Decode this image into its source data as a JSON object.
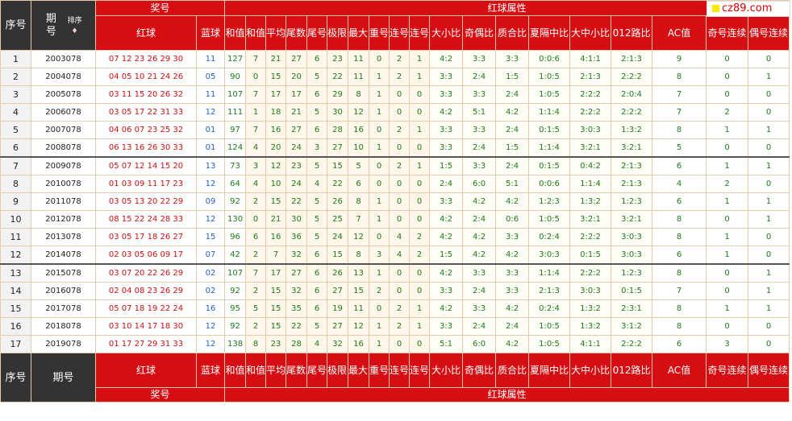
{
  "header": {
    "seq": "序号",
    "issue": "期号",
    "sort": "排序",
    "sort_icon": "sort-arrows-icon",
    "prize": "奖号",
    "red": "红球",
    "blue": "蓝球",
    "attr": "红球属性",
    "cols": [
      "和值",
      "和值尾数",
      "平均值",
      "尾数和值",
      "尾号组数",
      "极限间距",
      "最大间距",
      "重号个数",
      "连号个数",
      "连号组数",
      "大小比",
      "奇偶比",
      "质合比",
      "夏隔中比",
      "大中小比",
      "012路比",
      "AC值",
      "奇号连续",
      "偶号连续"
    ]
  },
  "footer": {
    "seq": "序号",
    "issue": "期号",
    "red": "红球",
    "blue": "蓝球",
    "cols": [
      "和值",
      "和值尾数",
      "平均值",
      "尾数和值",
      "尾号组数",
      "极限间距",
      "最大间距",
      "重号个数",
      "连号个数",
      "连号组数",
      "大小比",
      "奇偶比",
      "质合比",
      "夏隔中比",
      "大中小比",
      "012路比",
      "AC值",
      "奇号连续",
      "偶号连续"
    ],
    "prize": "奖号",
    "attr": "红球属性"
  },
  "logo": {
    "text": "cz89.com"
  },
  "colors": {
    "header_red": "#d60e14",
    "red_ball": "#d01010",
    "blue_ball": "#1f5fd0",
    "green_value": "#1a7a1a"
  },
  "rows": [
    {
      "seq": "1",
      "issue": "2003078",
      "red": "07 12 23 26 29 30",
      "blue": "11",
      "vals": [
        "127",
        "7",
        "21",
        "27",
        "6",
        "23",
        "11",
        "0",
        "2",
        "1",
        "4:2",
        "3:3",
        "3:3",
        "0:0:6",
        "4:1:1",
        "2:1:3",
        "9",
        "0",
        "0"
      ]
    },
    {
      "seq": "2",
      "issue": "2004078",
      "red": "04 05 10 21 24 26",
      "blue": "05",
      "vals": [
        "90",
        "0",
        "15",
        "20",
        "5",
        "22",
        "11",
        "1",
        "2",
        "1",
        "3:3",
        "2:4",
        "1:5",
        "1:0:5",
        "2:1:3",
        "2:2:2",
        "8",
        "0",
        "1"
      ]
    },
    {
      "seq": "3",
      "issue": "2005078",
      "red": "03 11 15 20 26 32",
      "blue": "11",
      "vals": [
        "107",
        "7",
        "17",
        "17",
        "6",
        "29",
        "8",
        "1",
        "0",
        "0",
        "3:3",
        "3:3",
        "2:4",
        "1:0:5",
        "2:2:2",
        "2:0:4",
        "7",
        "0",
        "0"
      ]
    },
    {
      "seq": "4",
      "issue": "2006078",
      "red": "03 05 17 22 31 33",
      "blue": "12",
      "vals": [
        "111",
        "1",
        "18",
        "21",
        "5",
        "30",
        "12",
        "1",
        "0",
        "0",
        "4:2",
        "5:1",
        "4:2",
        "1:1:4",
        "2:2:2",
        "2:2:2",
        "7",
        "2",
        "0"
      ]
    },
    {
      "seq": "5",
      "issue": "2007078",
      "red": "04 06 07 23 25 32",
      "blue": "01",
      "vals": [
        "97",
        "7",
        "16",
        "27",
        "6",
        "28",
        "16",
        "0",
        "2",
        "1",
        "3:3",
        "3:3",
        "2:4",
        "0:1:5",
        "3:0:3",
        "1:3:2",
        "8",
        "1",
        "1"
      ]
    },
    {
      "seq": "6",
      "issue": "2008078",
      "red": "06 13 16 26 30 33",
      "blue": "01",
      "vals": [
        "124",
        "4",
        "20",
        "24",
        "3",
        "27",
        "10",
        "1",
        "0",
        "0",
        "3:3",
        "2:4",
        "1:5",
        "1:1:4",
        "3:2:1",
        "3:2:1",
        "5",
        "0",
        "0"
      ]
    },
    {
      "seq": "7",
      "issue": "2009078",
      "red": "05 07 12 14 15 20",
      "blue": "13",
      "vals": [
        "73",
        "3",
        "12",
        "23",
        "5",
        "15",
        "5",
        "0",
        "2",
        "1",
        "1:5",
        "3:3",
        "2:4",
        "0:1:5",
        "0:4:2",
        "2:1:3",
        "6",
        "1",
        "1"
      ]
    },
    {
      "seq": "8",
      "issue": "2010078",
      "red": "01 03 09 11 17 23",
      "blue": "12",
      "vals": [
        "64",
        "4",
        "10",
        "24",
        "4",
        "22",
        "6",
        "0",
        "0",
        "0",
        "2:4",
        "6:0",
        "5:1",
        "0:0:6",
        "1:1:4",
        "2:1:3",
        "4",
        "2",
        "0"
      ]
    },
    {
      "seq": "9",
      "issue": "2011078",
      "red": "03 05 13 20 22 29",
      "blue": "09",
      "vals": [
        "92",
        "2",
        "15",
        "22",
        "5",
        "26",
        "8",
        "1",
        "0",
        "0",
        "3:3",
        "4:2",
        "4:2",
        "1:2:3",
        "1:3:2",
        "1:2:3",
        "6",
        "1",
        "1"
      ]
    },
    {
      "seq": "10",
      "issue": "2012078",
      "red": "08 15 22 24 28 33",
      "blue": "12",
      "vals": [
        "130",
        "0",
        "21",
        "30",
        "5",
        "25",
        "7",
        "1",
        "0",
        "0",
        "4:2",
        "2:4",
        "0:6",
        "1:0:5",
        "3:2:1",
        "3:2:1",
        "8",
        "0",
        "1"
      ]
    },
    {
      "seq": "11",
      "issue": "2013078",
      "red": "03 05 17 18 26 27",
      "blue": "15",
      "vals": [
        "96",
        "6",
        "16",
        "36",
        "5",
        "24",
        "12",
        "0",
        "4",
        "2",
        "4:2",
        "4:2",
        "3:3",
        "0:2:4",
        "2:2:2",
        "3:0:3",
        "8",
        "1",
        "0"
      ]
    },
    {
      "seq": "12",
      "issue": "2014078",
      "red": "02 03 05 06 09 17",
      "blue": "07",
      "vals": [
        "42",
        "2",
        "7",
        "32",
        "6",
        "15",
        "8",
        "3",
        "4",
        "2",
        "1:5",
        "4:2",
        "4:2",
        "3:0:3",
        "0:1:5",
        "3:0:3",
        "6",
        "1",
        "0"
      ]
    },
    {
      "seq": "13",
      "issue": "2015078",
      "red": "03 07 20 22 26 29",
      "blue": "02",
      "vals": [
        "107",
        "7",
        "17",
        "27",
        "6",
        "26",
        "13",
        "1",
        "0",
        "0",
        "4:2",
        "3:3",
        "3:3",
        "1:1:4",
        "2:2:2",
        "1:2:3",
        "8",
        "0",
        "1"
      ]
    },
    {
      "seq": "14",
      "issue": "2016078",
      "red": "02 04 08 23 26 29",
      "blue": "02",
      "vals": [
        "92",
        "2",
        "15",
        "32",
        "6",
        "27",
        "15",
        "2",
        "0",
        "0",
        "3:3",
        "2:4",
        "3:3",
        "2:1:3",
        "3:0:3",
        "0:1:5",
        "7",
        "0",
        "1"
      ]
    },
    {
      "seq": "15",
      "issue": "2017078",
      "red": "05 07 18 19 22 24",
      "blue": "16",
      "vals": [
        "95",
        "5",
        "15",
        "35",
        "6",
        "19",
        "11",
        "0",
        "2",
        "1",
        "4:2",
        "3:3",
        "4:2",
        "0:2:4",
        "1:3:2",
        "2:3:1",
        "8",
        "1",
        "1"
      ]
    },
    {
      "seq": "16",
      "issue": "2018078",
      "red": "03 10 14 17 18 30",
      "blue": "12",
      "vals": [
        "92",
        "2",
        "15",
        "22",
        "5",
        "27",
        "12",
        "1",
        "2",
        "1",
        "3:3",
        "2:4",
        "2:4",
        "1:0:5",
        "1:3:2",
        "3:1:2",
        "8",
        "0",
        "0"
      ]
    },
    {
      "seq": "17",
      "issue": "2019078",
      "red": "01 17 27 29 31 33",
      "blue": "12",
      "vals": [
        "138",
        "8",
        "23",
        "28",
        "4",
        "32",
        "16",
        "1",
        "0",
        "0",
        "5:1",
        "6:0",
        "4:2",
        "1:0:5",
        "4:1:1",
        "2:2:2",
        "6",
        "3",
        "0"
      ]
    }
  ]
}
